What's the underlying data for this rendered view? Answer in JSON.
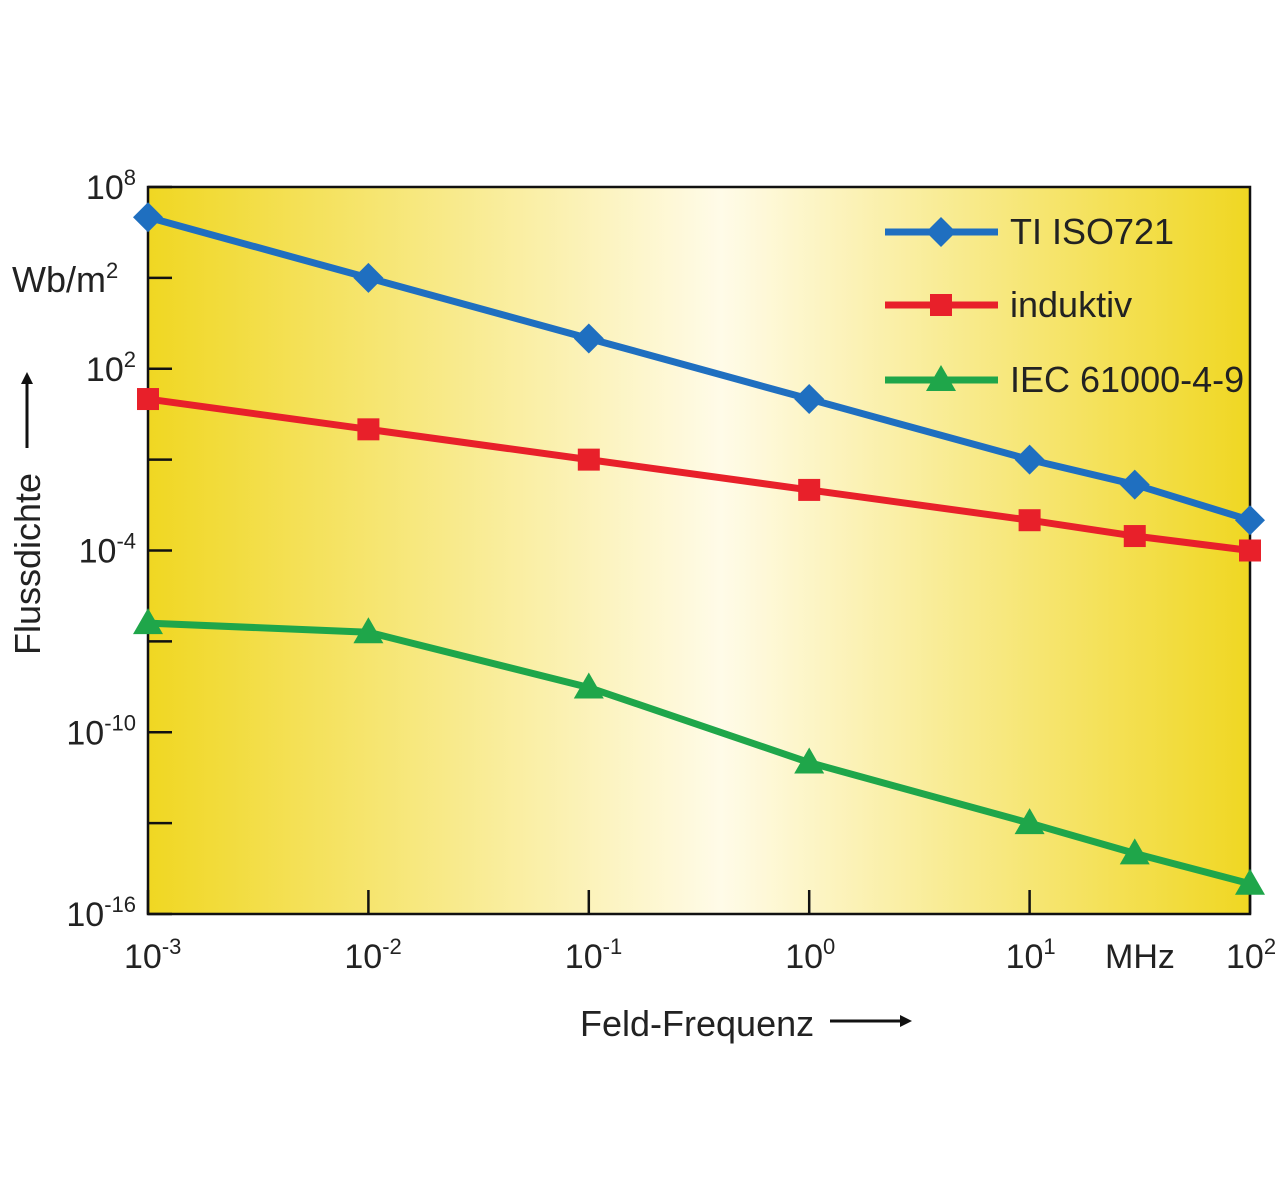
{
  "chart_data": {
    "type": "line",
    "x_scale": "log",
    "y_scale": "log",
    "xlim": [
      0.001,
      100
    ],
    "ylim": [
      1e-16,
      100000000.0
    ],
    "xlabel": "Feld-Frequenz",
    "ylabel": "Flussdichte",
    "yunit": "Wb/m",
    "yunit_exp": "2",
    "xunit": "MHz",
    "x_ticks": [
      {
        "value": 0.001,
        "base": "10",
        "exp": "-3"
      },
      {
        "value": 0.01,
        "base": "10",
        "exp": "-2"
      },
      {
        "value": 0.1,
        "base": "10",
        "exp": "-1"
      },
      {
        "value": 1,
        "base": "10",
        "exp": "0"
      },
      {
        "value": 10,
        "base": "10",
        "exp": "1"
      },
      {
        "value": 100,
        "base": "10",
        "exp": "2"
      }
    ],
    "y_ticks": [
      {
        "value": 100000000.0,
        "base": "10",
        "exp": "8"
      },
      {
        "value": 100.0,
        "base": "10",
        "exp": "2"
      },
      {
        "value": 0.0001,
        "base": "10",
        "exp": "-4"
      },
      {
        "value": 1e-10,
        "base": "10",
        "exp": "-10"
      },
      {
        "value": 1e-16,
        "base": "10",
        "exp": "-16"
      }
    ],
    "y_minor_ticks": [
      100000.0,
      0.1,
      1e-07,
      1e-13
    ],
    "legend_position": "top-right",
    "series": [
      {
        "name": "TI ISO721",
        "color": "#1f6fc0",
        "marker": "diamond",
        "x": [
          0.001,
          0.01,
          0.1,
          1,
          10,
          30,
          100
        ],
        "y": [
          10000000.0,
          100000.0,
          1000.0,
          10,
          0.1,
          0.015,
          0.001
        ]
      },
      {
        "name": "induktiv",
        "color": "#e8202a",
        "marker": "square",
        "x": [
          0.001,
          0.01,
          0.1,
          1,
          10,
          30,
          100
        ],
        "y": [
          10,
          1,
          0.1,
          0.01,
          0.001,
          0.0003,
          0.0001
        ]
      },
      {
        "name": "IEC 61000-4-9",
        "color": "#1fa64a",
        "marker": "triangle",
        "x": [
          0.001,
          0.01,
          0.1,
          1,
          10,
          30,
          100
        ],
        "y": [
          4e-07,
          2e-07,
          3e-09,
          1e-11,
          1e-13,
          1e-14,
          1e-15
        ]
      }
    ]
  }
}
